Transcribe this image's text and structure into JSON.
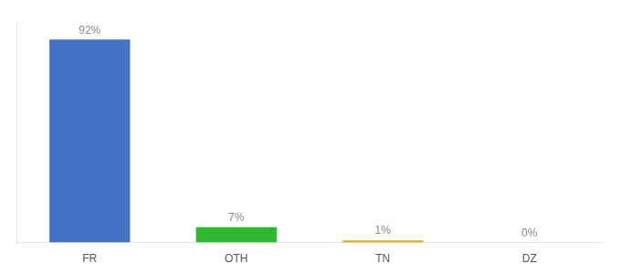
{
  "chart_data": {
    "type": "bar",
    "categories": [
      "FR",
      "OTH",
      "TN",
      "DZ"
    ],
    "values": [
      92,
      7,
      1,
      0
    ],
    "value_labels": [
      "92%",
      "7%",
      "1%",
      "0%"
    ],
    "colors": [
      "#4472c4",
      "#2db82d",
      "#e6a817",
      "#e6a817"
    ],
    "ylim": [
      0,
      100
    ],
    "data_labels": true,
    "tick_labels": "x",
    "grid": false
  }
}
